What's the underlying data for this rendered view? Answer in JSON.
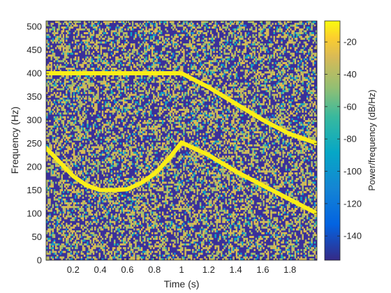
{
  "chart_data": {
    "type": "heatmap",
    "title": "",
    "xlabel": "Time (s)",
    "ylabel": "Frequency (Hz)",
    "xlim": [
      0,
      2
    ],
    "ylim": [
      0,
      512
    ],
    "x_ticks": [
      0.2,
      0.4,
      0.6,
      0.8,
      1,
      1.2,
      1.4,
      1.6,
      1.8
    ],
    "x_tick_labels": [
      "0.2",
      "0.4",
      "0.6",
      "0.8",
      "1",
      "1.2",
      "1.4",
      "1.6",
      "1.8"
    ],
    "y_ticks": [
      0,
      50,
      100,
      150,
      200,
      250,
      300,
      350,
      400,
      450,
      500
    ],
    "y_tick_labels": [
      "0",
      "50",
      "100",
      "150",
      "200",
      "250",
      "300",
      "350",
      "400",
      "450",
      "500"
    ],
    "colorbar": {
      "label": "Power/frequency (dB/Hz)",
      "clim": [
        -155,
        -7
      ],
      "ticks": [
        -20,
        -40,
        -60,
        -80,
        -100,
        -120,
        -140
      ],
      "tick_labels": [
        "-20",
        "-40",
        "-60",
        "-80",
        "-100",
        "-120",
        "-140"
      ],
      "colormap": "parula"
    },
    "background_noise_dbhz": "-155 to -40 (random)",
    "series": [
      {
        "points": [
          [
            0.0,
            400
          ],
          [
            0.2,
            400
          ],
          [
            0.4,
            400
          ],
          [
            0.6,
            400
          ],
          [
            0.8,
            400
          ],
          [
            1.0,
            400
          ],
          [
            1.2,
            370
          ],
          [
            1.4,
            335
          ],
          [
            1.6,
            300
          ],
          [
            1.8,
            270
          ],
          [
            2.0,
            250
          ]
        ],
        "level_dbhz": -10
      },
      {
        "points": [
          [
            0.0,
            240
          ],
          [
            0.1,
            210
          ],
          [
            0.2,
            180
          ],
          [
            0.3,
            160
          ],
          [
            0.4,
            150
          ],
          [
            0.5,
            150
          ],
          [
            0.6,
            152
          ],
          [
            0.7,
            165
          ],
          [
            0.8,
            185
          ],
          [
            0.9,
            215
          ],
          [
            1.0,
            252
          ],
          [
            1.2,
            225
          ],
          [
            1.4,
            190
          ],
          [
            1.6,
            160
          ],
          [
            1.8,
            130
          ],
          [
            2.0,
            100
          ]
        ],
        "level_dbhz": -10
      }
    ]
  }
}
